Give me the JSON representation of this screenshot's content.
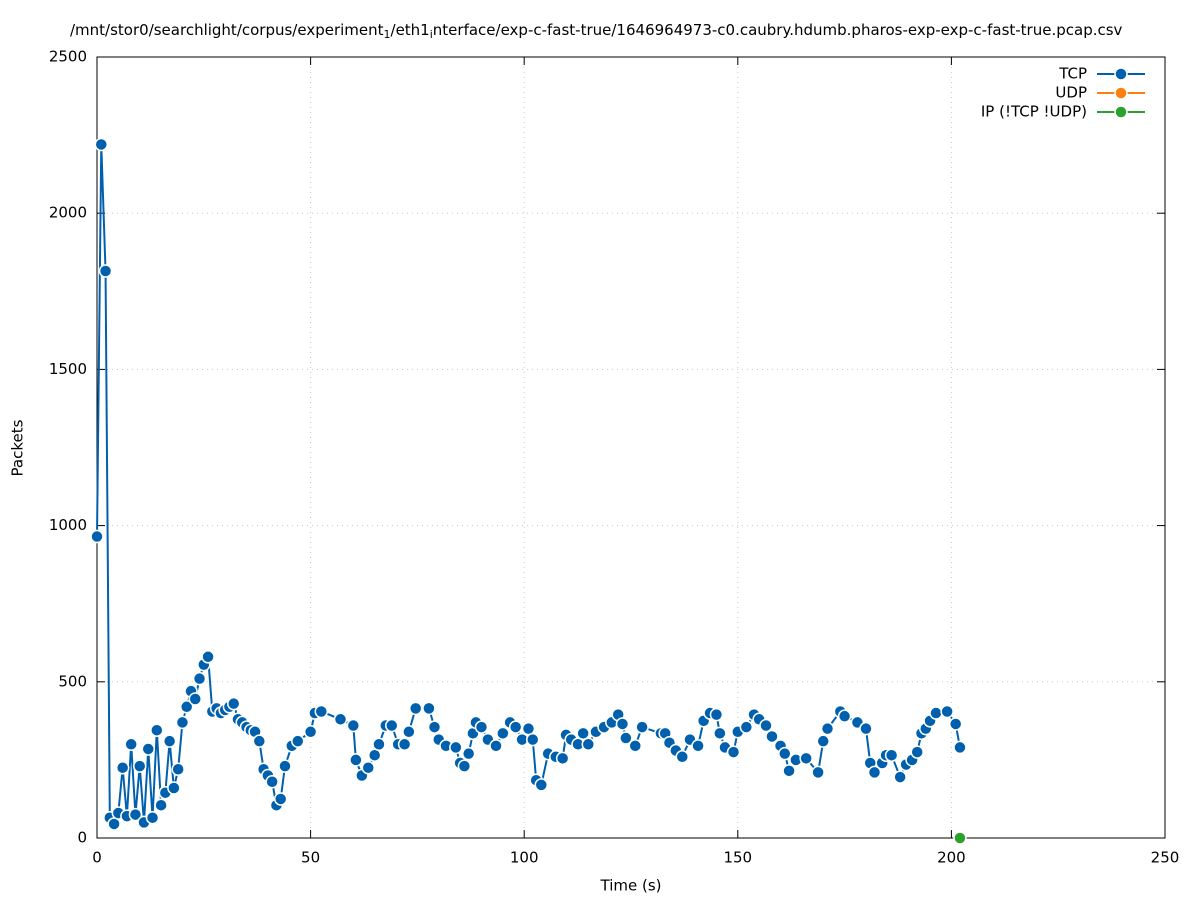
{
  "chart_data": {
    "type": "line",
    "title": [
      "/mnt/stor0/searchlight/corpus/experiment",
      "1",
      "/eth1",
      "i",
      "nterface/exp-c-fast-true/1646964973-c0.caubry.hdumb.pharos-exp-exp-c-fast-true.pcap.csv"
    ],
    "xlabel": "Time (s)",
    "ylabel": "Packets",
    "xlim": [
      0,
      250
    ],
    "xticks": [
      0,
      50,
      100,
      150,
      200,
      250
    ],
    "ylim": [
      0,
      2500
    ],
    "yticks": [
      0,
      500,
      1000,
      1500,
      2000,
      2500
    ],
    "grid": true,
    "legend": "upper right",
    "series": [
      {
        "name": "TCP",
        "color": "#0060ad",
        "x": [
          0,
          1,
          2,
          3,
          4,
          5,
          6,
          7,
          8,
          9,
          10,
          11,
          12,
          13,
          14,
          15,
          16,
          17,
          18,
          19,
          20,
          21,
          22,
          23,
          24,
          25,
          26,
          27,
          28,
          29,
          30,
          31,
          32,
          33,
          34,
          35,
          36,
          37,
          38,
          39,
          40,
          41,
          42,
          43,
          44,
          45.6,
          47,
          50,
          51,
          52.5,
          57,
          60,
          60.6,
          62,
          63.5,
          65,
          66,
          67.6,
          69,
          70.5,
          72,
          73,
          74.6,
          77.7,
          79,
          80,
          81.7,
          84,
          85,
          86,
          87,
          88,
          88.7,
          90,
          91.5,
          93.4,
          95,
          96.7,
          98,
          99.5,
          101,
          102,
          102.8,
          104,
          105.6,
          107.4,
          109,
          109.8,
          111,
          112.6,
          113.8,
          115,
          116.8,
          118.7,
          120.5,
          122,
          123,
          123.8,
          126,
          127.6,
          132,
          133,
          134,
          135.5,
          137,
          138.8,
          140.7,
          142,
          143.5,
          145,
          145.8,
          147,
          149,
          150,
          152,
          153.8,
          155,
          156.6,
          158,
          160,
          161,
          162,
          163.6,
          166,
          168.8,
          170,
          171,
          174,
          175,
          178,
          180,
          181,
          182,
          183.8,
          184.7,
          186,
          188,
          189.4,
          190.8,
          192,
          193,
          194,
          195,
          196.4,
          199,
          201,
          202
        ],
        "values": [
          965,
          2220,
          1815,
          65,
          45,
          80,
          225,
          70,
          300,
          75,
          230,
          50,
          285,
          65,
          345,
          105,
          145,
          310,
          160,
          220,
          370,
          420,
          470,
          445,
          510,
          555,
          580,
          405,
          415,
          400,
          410,
          420,
          430,
          380,
          370,
          355,
          345,
          340,
          310,
          220,
          200,
          180,
          105,
          125,
          230,
          295,
          310,
          340,
          400,
          405,
          380,
          360,
          250,
          200,
          225,
          265,
          300,
          360,
          360,
          300,
          300,
          340,
          415,
          415,
          355,
          315,
          295,
          290,
          240,
          230,
          270,
          335,
          370,
          355,
          315,
          295,
          335,
          370,
          355,
          315,
          350,
          315,
          185,
          170,
          270,
          260,
          255,
          330,
          315,
          300,
          335,
          300,
          340,
          355,
          370,
          395,
          365,
          320,
          295,
          355,
          335,
          335,
          305,
          280,
          260,
          315,
          295,
          375,
          400,
          395,
          335,
          290,
          275,
          340,
          355,
          395,
          380,
          360,
          325,
          295,
          270,
          215,
          250,
          255,
          210,
          310,
          350,
          405,
          390,
          370,
          350,
          240,
          210,
          240,
          265,
          265,
          195,
          235,
          250,
          275,
          335,
          350,
          375,
          400,
          405,
          365,
          290
        ]
      },
      {
        "name": "UDP",
        "color": "#ff7f0e",
        "x": [],
        "values": []
      },
      {
        "name": "IP (!TCP  !UDP)",
        "color": "#2ca02c",
        "x": [
          202
        ],
        "values": [
          0
        ]
      }
    ]
  }
}
